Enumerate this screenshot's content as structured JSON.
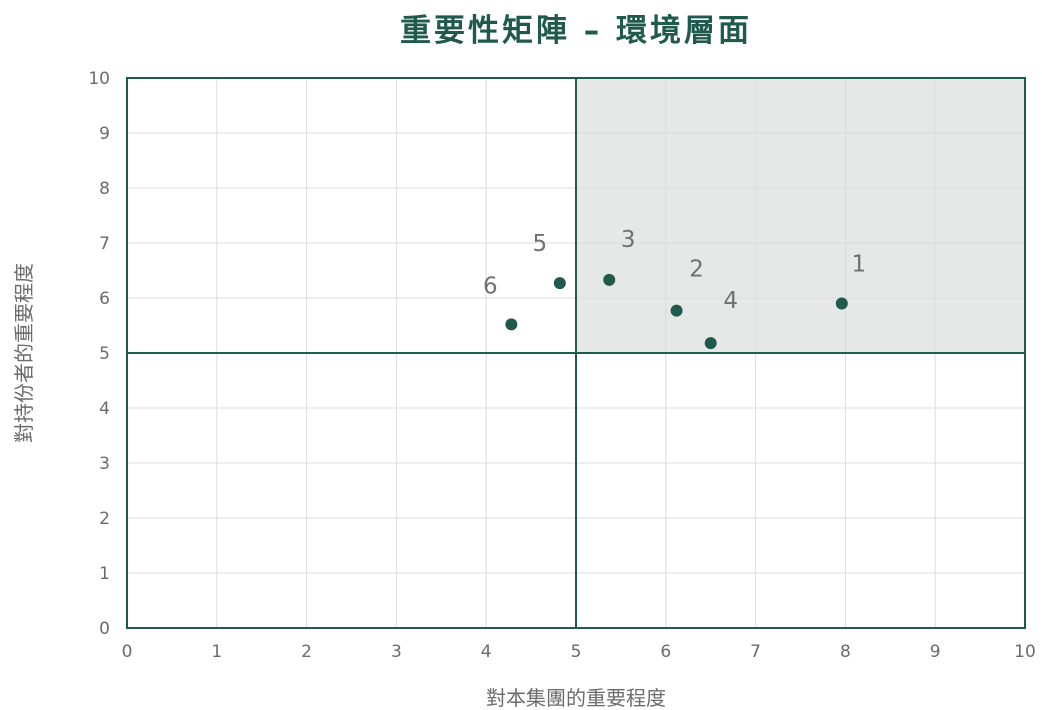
{
  "chart_data": {
    "type": "scatter",
    "title": "重要性矩陣 – 環境層面",
    "xlabel": "對本集團的重要程度",
    "ylabel": "對持份者的重要程度",
    "xlim": [
      0,
      10
    ],
    "ylim": [
      0,
      10
    ],
    "xticks": [
      "0",
      "1",
      "2",
      "3",
      "4",
      "5",
      "6",
      "7",
      "8",
      "9",
      "10"
    ],
    "yticks": [
      "0",
      "1",
      "2",
      "3",
      "4",
      "5",
      "6",
      "7",
      "8",
      "9",
      "10"
    ],
    "grid": true,
    "quadrant_divider": {
      "x": 5,
      "y": 5
    },
    "highlighted_quadrant": {
      "x_range": [
        5,
        10
      ],
      "y_range": [
        5,
        10
      ]
    },
    "points": [
      {
        "label": "1",
        "x": 7.96,
        "y": 5.9
      },
      {
        "label": "2",
        "x": 6.12,
        "y": 5.77
      },
      {
        "label": "3",
        "x": 5.37,
        "y": 6.33
      },
      {
        "label": "4",
        "x": 6.5,
        "y": 5.18
      },
      {
        "label": "5",
        "x": 4.82,
        "y": 6.27
      },
      {
        "label": "6",
        "x": 4.28,
        "y": 5.52
      }
    ],
    "colors": {
      "title": "#1f5a4c",
      "point": "#1f5a4c",
      "frame": "#1f5a4c",
      "grid": "#dcdcdc",
      "highlight": "#e6e8e7",
      "text": "#6b6b6b"
    }
  }
}
